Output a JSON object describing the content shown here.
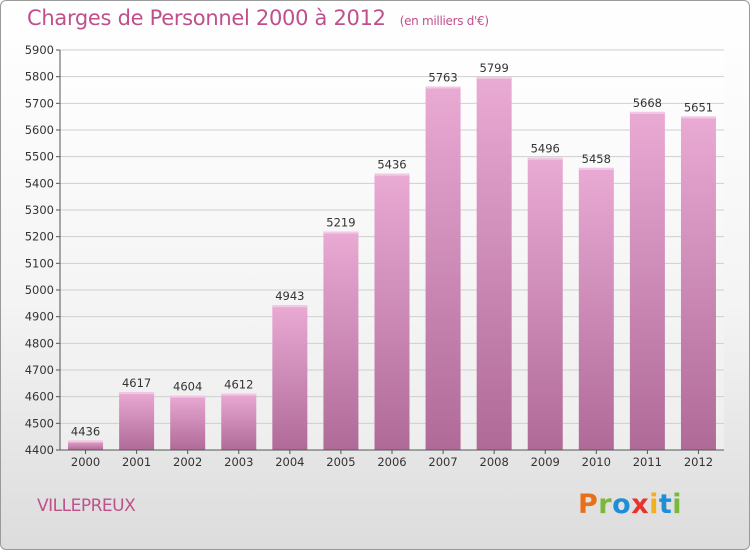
{
  "title": "Charges de Personnel 2000 à 2012",
  "unit": "(en milliers d'€)",
  "commune": "VILLEPREUX",
  "logo_text": "Proxiti",
  "logo_colors": [
    "#e8701a",
    "#7ab83a",
    "#1e8ed6",
    "#e8332c",
    "#f2b01e",
    "#1e8ed6",
    "#7ab83a"
  ],
  "colors": {
    "title": "#c0508c",
    "bar_top": "#e9aad4",
    "bar_bottom": "#b06a98"
  },
  "chart_data": {
    "type": "bar",
    "categories": [
      "2000",
      "2001",
      "2002",
      "2003",
      "2004",
      "2005",
      "2006",
      "2007",
      "2008",
      "2009",
      "2010",
      "2011",
      "2012"
    ],
    "values": [
      4436,
      4617,
      4604,
      4612,
      4943,
      5219,
      5436,
      5763,
      5799,
      5496,
      5458,
      5668,
      5651
    ],
    "title": "Charges de Personnel 2000 à 2012",
    "ylim": [
      4400,
      5900
    ],
    "yticks": [
      4400,
      4500,
      4600,
      4700,
      4800,
      4900,
      5000,
      5100,
      5200,
      5300,
      5400,
      5500,
      5600,
      5700,
      5800,
      5900
    ],
    "grid": true,
    "data_labels": true
  }
}
